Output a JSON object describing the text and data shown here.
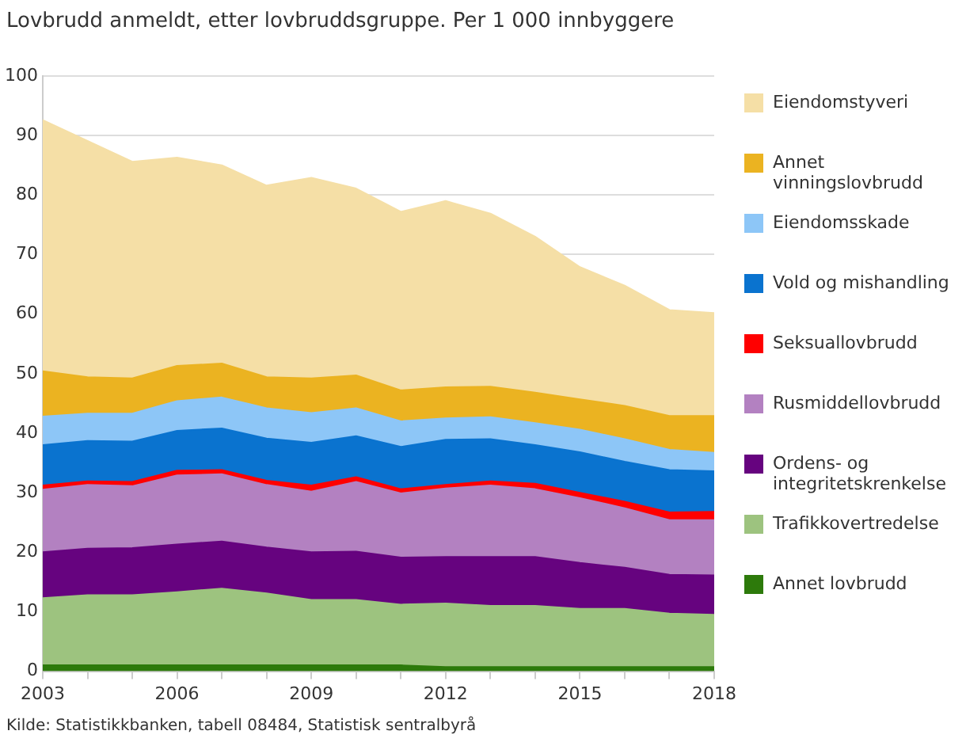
{
  "chart_data": {
    "type": "area",
    "stacked": true,
    "title": "Lovbrudd anmeldt, etter lovbruddsgruppe. Per 1 000 innbyggere",
    "annotations": [
      "Kilde: Statistikkbanken, tabell 08484, Statistisk sentralbyrå"
    ],
    "x": [
      2003,
      2004,
      2005,
      2006,
      2007,
      2008,
      2009,
      2010,
      2011,
      2012,
      2013,
      2014,
      2015,
      2016,
      2017,
      2018
    ],
    "xlim": [
      2003,
      2018
    ],
    "xticks": [
      2003,
      {
        "value": 2004,
        "label": null
      },
      {
        "value": 2005,
        "label": null
      },
      2006,
      {
        "value": 2007,
        "label": null
      },
      {
        "value": 2008,
        "label": null
      },
      2009,
      {
        "value": 2010,
        "label": null
      },
      {
        "value": 2011,
        "label": null
      },
      2012,
      {
        "value": 2013,
        "label": null
      },
      {
        "value": 2014,
        "label": null
      },
      2015,
      {
        "value": 2016,
        "label": null
      },
      {
        "value": 2017,
        "label": null
      },
      2018
    ],
    "ylim": [
      0,
      100
    ],
    "yticks": [
      0,
      10,
      20,
      30,
      40,
      50,
      60,
      70,
      80,
      90,
      100
    ],
    "grid": "y",
    "legend": "right",
    "series": [
      {
        "name": "Annet lovbrudd",
        "color": "#2d7a0b",
        "values": [
          1.0,
          1.0,
          1.0,
          1.0,
          1.0,
          1.0,
          1.0,
          1.0,
          1.0,
          0.7,
          0.7,
          0.7,
          0.7,
          0.7,
          0.7,
          0.7
        ]
      },
      {
        "name": "Trafikkovertredelse",
        "color": "#9dc37f",
        "values": [
          11.3,
          11.8,
          11.8,
          12.3,
          12.9,
          12.1,
          11.0,
          11.0,
          10.2,
          10.7,
          10.3,
          10.3,
          9.8,
          9.8,
          9.0,
          8.8
        ]
      },
      {
        "name": "Ordens- og integritetskrenkelse",
        "color": "#66037f",
        "values": [
          7.7,
          7.8,
          7.9,
          8.0,
          7.9,
          7.7,
          8.0,
          8.1,
          7.9,
          7.8,
          8.2,
          8.2,
          7.7,
          6.9,
          6.5,
          6.6
        ]
      },
      {
        "name": "Rusmiddellovbrudd",
        "color": "#b381c1",
        "values": [
          10.5,
          10.7,
          10.4,
          11.6,
          11.3,
          10.5,
          10.2,
          11.7,
          10.8,
          11.5,
          12.0,
          11.4,
          10.9,
          10.0,
          9.2,
          9.3
        ]
      },
      {
        "name": "Seksuallovbrudd",
        "color": "#ff0000",
        "values": [
          0.7,
          0.6,
          0.7,
          0.8,
          0.7,
          0.7,
          1.0,
          0.8,
          0.7,
          0.6,
          0.7,
          0.9,
          0.9,
          1.1,
          1.3,
          1.4
        ]
      },
      {
        "name": "Vold og mishandling",
        "color": "#0a73cf",
        "values": [
          6.8,
          6.8,
          6.8,
          6.7,
          7.0,
          7.1,
          7.2,
          6.9,
          7.1,
          7.6,
          7.1,
          6.5,
          6.8,
          6.7,
          7.1,
          6.8
        ]
      },
      {
        "name": "Eiendomsskade",
        "color": "#8dc6f7",
        "values": [
          4.8,
          4.6,
          4.7,
          5.0,
          5.2,
          5.1,
          5.0,
          4.7,
          4.3,
          3.6,
          3.7,
          3.7,
          3.8,
          3.8,
          3.4,
          3.1
        ]
      },
      {
        "name": "Annet vinningslovbrudd",
        "color": "#ebb321",
        "values": [
          7.6,
          6.1,
          5.9,
          5.9,
          5.7,
          5.2,
          5.8,
          5.5,
          5.2,
          5.2,
          5.1,
          5.1,
          5.1,
          5.6,
          5.7,
          6.2
        ]
      },
      {
        "name": "Eiendomstyveri",
        "color": "#f5dfa6",
        "values": [
          42.2,
          39.7,
          36.4,
          35.0,
          33.3,
          32.2,
          33.7,
          31.4,
          30.0,
          31.3,
          29.1,
          26.2,
          22.2,
          20.2,
          17.8,
          17.3
        ]
      }
    ]
  }
}
